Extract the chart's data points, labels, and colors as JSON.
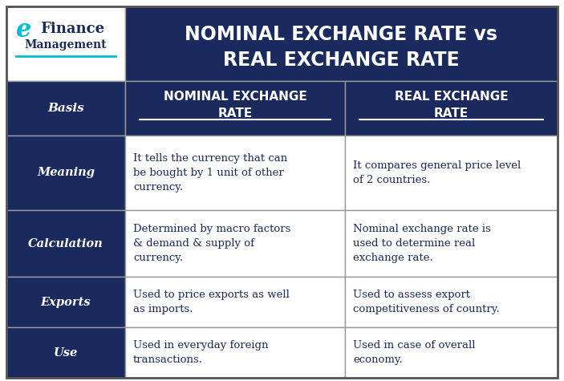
{
  "title_line1": "NOMINAL EXCHANGE RATE vs",
  "title_line2": "REAL EXCHANGE RATE",
  "title_bg": "#1a2a5e",
  "title_color": "#ffffff",
  "header_bg": "#1a2a5e",
  "header_color": "#ffffff",
  "row_bg_dark": "#1a2a5e",
  "row_bg_light": "#ffffff",
  "row_label_color": "#ffffff",
  "cell_text_color": "#1a2a5e",
  "fig_bg": "#ffffff",
  "col_header1": "NOMINAL EXCHANGE\nRATE",
  "col_header2": "REAL EXCHANGE\nRATE",
  "row_labels": [
    "Meaning",
    "Calculation",
    "Exports",
    "Use"
  ],
  "col1_data": [
    "It tells the currency that can\nbe bought by 1 unit of other\ncurrency.",
    "Determined by macro factors\n& demand & supply of\ncurrency.",
    "Used to price exports as well\nas imports.",
    "Used in everyday foreign\ntransactions."
  ],
  "col2_data": [
    "It compares general price level\nof 2 countries.",
    "Nominal exchange rate is\nused to determine real\nexchange rate.",
    "Used to assess export\ncompetitiveness of country.",
    "Used in case of overall\neconomy."
  ],
  "logo_text1": "Finance",
  "logo_text2": "Management",
  "logo_accent": "#00bcd4",
  "logo_icon": "e"
}
